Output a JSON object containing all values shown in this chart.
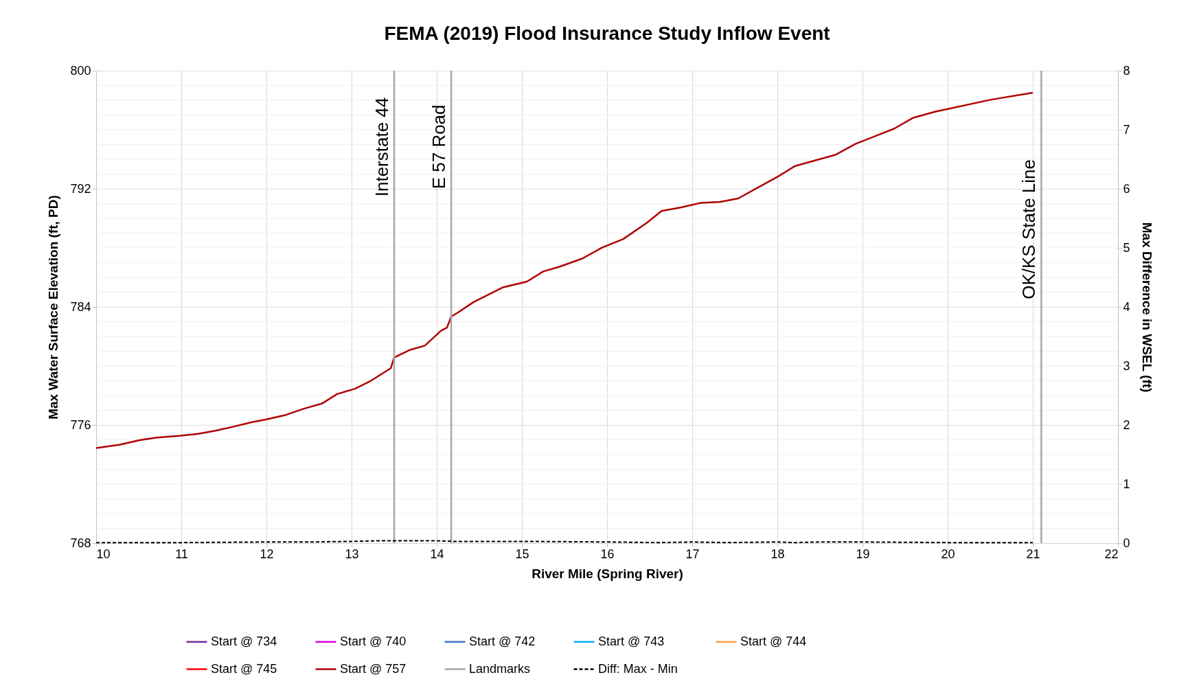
{
  "chart_data": {
    "type": "line",
    "title": "FEMA (2019) Flood Insurance Study Inflow Event",
    "xlabel": "River Mile (Spring River)",
    "ylabel": "Max Water Surface Elevation (ft, PD)",
    "y2label": "Max Difference in WSEL (ft)",
    "x": [
      10,
      10.27,
      10.51,
      10.71,
      10.99,
      11.2,
      11.4,
      11.62,
      11.83,
      11.99,
      12.23,
      12.44,
      12.65,
      12.83,
      13.04,
      13.23,
      13.46,
      13.5,
      13.68,
      13.86,
      14.05,
      14.12,
      14.17,
      14.25,
      14.43,
      14.77,
      15.06,
      15.25,
      15.44,
      15.71,
      15.94,
      16.19,
      16.47,
      16.64,
      16.86,
      17.1,
      17.33,
      17.54,
      17.75,
      18,
      18.21,
      18.44,
      18.68,
      18.92,
      19.37,
      19.59,
      19.85,
      20.51,
      21
    ],
    "series": [
      {
        "name": "Start @ 734",
        "color": "#7030a0",
        "values": [
          null,
          null,
          null,
          null,
          null,
          null,
          null,
          null,
          null,
          null,
          null,
          null,
          null,
          null,
          null,
          null,
          null,
          null,
          null,
          null,
          null,
          null,
          null,
          null,
          null,
          null,
          null,
          null,
          null,
          null,
          null,
          null,
          null,
          null,
          null,
          null,
          null,
          null,
          null,
          null,
          null,
          null,
          null,
          null,
          null,
          null,
          null,
          null,
          null
        ]
      },
      {
        "name": "Start @ 740",
        "color": "#e000e0",
        "values": [
          null,
          null,
          null,
          null,
          null,
          null,
          null,
          null,
          null,
          null,
          null,
          null,
          null,
          null,
          null,
          null,
          null,
          null,
          null,
          null,
          null,
          null,
          null,
          null,
          null,
          null,
          null,
          null,
          null,
          null,
          null,
          null,
          null,
          null,
          null,
          null,
          null,
          null,
          null,
          null,
          null,
          null,
          null,
          null,
          null,
          null,
          null,
          null,
          null
        ]
      },
      {
        "name": "Start @ 742",
        "color": "#4472c4",
        "values": [
          null,
          null,
          null,
          null,
          null,
          null,
          null,
          null,
          null,
          null,
          null,
          null,
          null,
          null,
          null,
          null,
          null,
          null,
          null,
          null,
          null,
          null,
          null,
          null,
          null,
          null,
          null,
          null,
          null,
          null,
          null,
          null,
          null,
          null,
          null,
          null,
          null,
          null,
          null,
          null,
          null,
          null,
          null,
          null,
          null,
          null,
          null,
          null,
          null
        ]
      },
      {
        "name": "Start @ 743",
        "color": "#00b0f0",
        "values": [
          null,
          null,
          null,
          null,
          null,
          null,
          null,
          null,
          null,
          null,
          null,
          null,
          null,
          null,
          null,
          null,
          null,
          null,
          null,
          null,
          null,
          null,
          null,
          null,
          null,
          null,
          null,
          null,
          null,
          null,
          null,
          null,
          null,
          null,
          null,
          null,
          null,
          null,
          null,
          null,
          null,
          null,
          null,
          null,
          null,
          null,
          null,
          null,
          null
        ]
      },
      {
        "name": "Start @ 744",
        "color": "#ffa040",
        "values": [
          null,
          null,
          null,
          null,
          null,
          null,
          null,
          null,
          null,
          null,
          null,
          null,
          null,
          null,
          null,
          null,
          null,
          null,
          null,
          null,
          null,
          null,
          null,
          null,
          null,
          null,
          null,
          null,
          null,
          null,
          null,
          null,
          null,
          null,
          null,
          null,
          null,
          null,
          null,
          null,
          null,
          null,
          null,
          null,
          null,
          null,
          null,
          null,
          null
        ]
      },
      {
        "name": "Start @ 745",
        "color": "#ff0000",
        "values": [
          null,
          null,
          null,
          null,
          null,
          null,
          null,
          null,
          null,
          null,
          null,
          null,
          null,
          null,
          null,
          null,
          null,
          null,
          null,
          null,
          null,
          null,
          null,
          null,
          null,
          null,
          null,
          null,
          null,
          null,
          null,
          null,
          null,
          null,
          null,
          null,
          null,
          null,
          null,
          null,
          null,
          null,
          null,
          null,
          null,
          null,
          null,
          null,
          null
        ]
      },
      {
        "name": "Start @ 757",
        "color": "#b00000",
        "values": [
          774.44,
          774.66,
          774.98,
          775.15,
          775.28,
          775.41,
          775.62,
          775.9,
          776.2,
          776.37,
          776.69,
          777.11,
          777.45,
          778.1,
          778.46,
          779.01,
          779.85,
          780.57,
          781.08,
          781.38,
          782.39,
          782.6,
          783.35,
          783.63,
          784.32,
          785.31,
          785.72,
          786.4,
          786.72,
          787.28,
          788.02,
          788.6,
          789.71,
          790.5,
          790.73,
          791.05,
          791.12,
          791.35,
          792.02,
          792.81,
          793.55,
          793.92,
          794.3,
          795.05,
          796.07,
          796.8,
          797.22,
          798.04,
          798.51
        ]
      },
      {
        "name": "Landmarks",
        "color": "#a6a6a6",
        "x": [
          13.5,
          13.5,
          null,
          14.17,
          14.17,
          null,
          21.1,
          21.1
        ],
        "values": [
          768,
          800,
          null,
          768,
          800,
          null,
          768,
          800
        ]
      },
      {
        "name": "Diff: Max - Min",
        "color": "#000000",
        "axis": "y2",
        "line_style": "dashed",
        "x": [
          10,
          11,
          12,
          12.5,
          13,
          13.3,
          13.5,
          14,
          14.2,
          15,
          16,
          16.6,
          17,
          17.4,
          18,
          18.2,
          18.5,
          19,
          20,
          21
        ],
        "values": [
          0.01,
          0.01,
          0.02,
          0.02,
          0.03,
          0.04,
          0.04,
          0.04,
          0.03,
          0.03,
          0.02,
          0.01,
          0.02,
          0.01,
          0.02,
          0.01,
          0.02,
          0.02,
          0.01,
          0.01
        ]
      }
    ],
    "annotations": [
      {
        "text": "Interstate 44",
        "x": 13.5,
        "y": 798.2
      },
      {
        "text": "E 57 Road",
        "x": 14.17,
        "y": 797.7
      },
      {
        "text": "OK/KS  State Line",
        "x": 21.1,
        "y": 794
      }
    ],
    "xlim": [
      10,
      22
    ],
    "xticks": [
      10,
      11,
      12,
      13,
      14,
      15,
      16,
      17,
      18,
      19,
      20,
      21,
      22
    ],
    "ylim": [
      768,
      800
    ],
    "yticks": [
      768,
      776,
      784,
      792,
      800
    ],
    "y2lim": [
      0,
      8
    ],
    "y2ticks": [
      0,
      1,
      2,
      3,
      4,
      5,
      6,
      7,
      8
    ],
    "grid": true,
    "legend": "bottom",
    "line_style": "solid"
  }
}
